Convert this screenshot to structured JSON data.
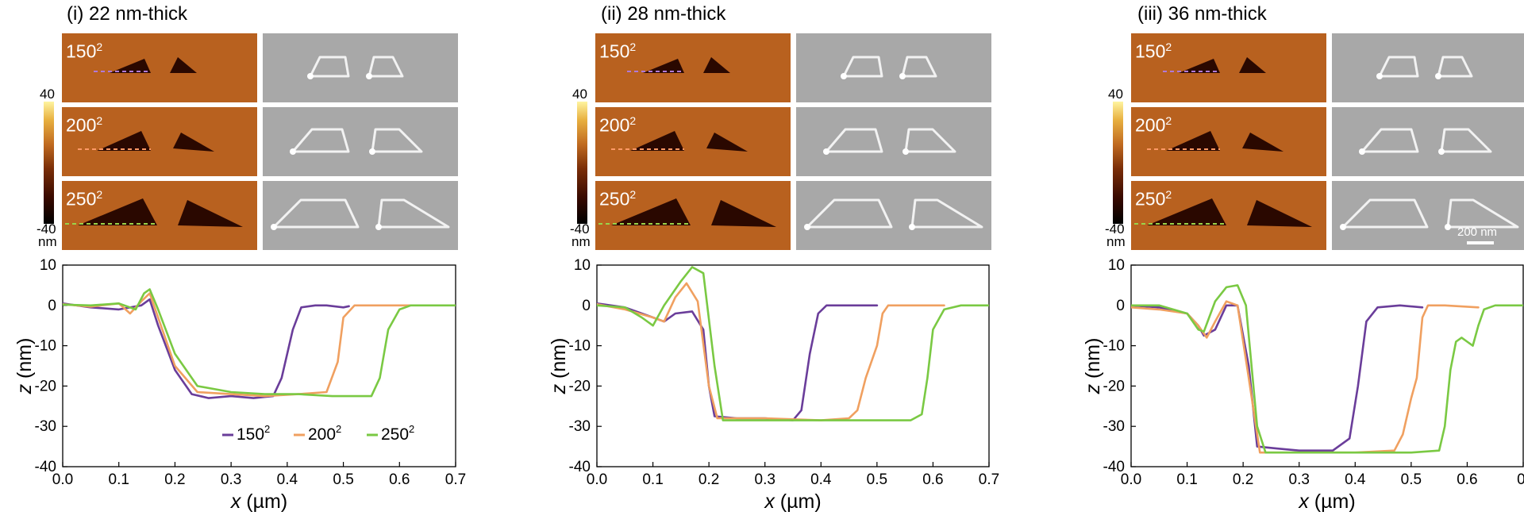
{
  "panels": [
    {
      "title": "(i) 22 nm-thick",
      "chart_data": {
        "type": "line",
        "xlabel_var": "x",
        "xlabel_unit": " (µm)",
        "ylabel_var": "z",
        "ylabel_unit": " (nm)",
        "xlim": [
          0,
          0.7
        ],
        "ylim": [
          -40,
          10
        ],
        "xticks": [
          "0.0",
          "0.1",
          "0.2",
          "0.3",
          "0.4",
          "0.5",
          "0.6",
          "0.7"
        ],
        "yticks": [
          "10",
          "0",
          "-10",
          "-20",
          "-30",
          "-40"
        ],
        "legend": [
          {
            "base": "150",
            "sup": "2"
          },
          {
            "base": "200",
            "sup": "2"
          },
          {
            "base": "250",
            "sup": "2"
          }
        ],
        "series": [
          {
            "color": "#6a3d9a",
            "points": [
              [
                0,
                0.5
              ],
              [
                0.05,
                -0.5
              ],
              [
                0.1,
                -1
              ],
              [
                0.14,
                0
              ],
              [
                0.155,
                1.5
              ],
              [
                0.17,
                -5
              ],
              [
                0.2,
                -16
              ],
              [
                0.23,
                -22
              ],
              [
                0.26,
                -23
              ],
              [
                0.3,
                -22.5
              ],
              [
                0.34,
                -23
              ],
              [
                0.375,
                -22.5
              ],
              [
                0.39,
                -18
              ],
              [
                0.41,
                -6
              ],
              [
                0.425,
                -0.5
              ],
              [
                0.45,
                0
              ],
              [
                0.47,
                0
              ],
              [
                0.5,
                -0.5
              ],
              [
                0.51,
                -0.2
              ]
            ]
          },
          {
            "color": "#f0a060",
            "points": [
              [
                0,
                0.3
              ],
              [
                0.05,
                -0.3
              ],
              [
                0.1,
                0.5
              ],
              [
                0.12,
                -2
              ],
              [
                0.14,
                1
              ],
              [
                0.155,
                3
              ],
              [
                0.17,
                -3
              ],
              [
                0.2,
                -15
              ],
              [
                0.24,
                -21.5
              ],
              [
                0.3,
                -22
              ],
              [
                0.36,
                -22.5
              ],
              [
                0.42,
                -22
              ],
              [
                0.47,
                -21.5
              ],
              [
                0.49,
                -14
              ],
              [
                0.5,
                -3
              ],
              [
                0.52,
                0
              ],
              [
                0.55,
                0
              ],
              [
                0.58,
                0
              ],
              [
                0.62,
                0
              ]
            ]
          },
          {
            "color": "#7ac943",
            "points": [
              [
                0,
                0.2
              ],
              [
                0.05,
                0
              ],
              [
                0.1,
                0.5
              ],
              [
                0.13,
                -1
              ],
              [
                0.145,
                3
              ],
              [
                0.155,
                4
              ],
              [
                0.17,
                -1
              ],
              [
                0.2,
                -12
              ],
              [
                0.24,
                -20
              ],
              [
                0.3,
                -21.5
              ],
              [
                0.36,
                -22
              ],
              [
                0.42,
                -22
              ],
              [
                0.48,
                -22.5
              ],
              [
                0.55,
                -22.5
              ],
              [
                0.565,
                -18
              ],
              [
                0.58,
                -6
              ],
              [
                0.6,
                -1
              ],
              [
                0.62,
                0
              ],
              [
                0.65,
                0
              ],
              [
                0.7,
                0
              ]
            ]
          }
        ]
      }
    },
    {
      "title": "(ii) 28 nm-thick",
      "chart_data": {
        "type": "line",
        "xlabel_var": "x",
        "xlabel_unit": " (µm)",
        "ylabel_var": "z",
        "ylabel_unit": " (nm)",
        "xlim": [
          0,
          0.7
        ],
        "ylim": [
          -40,
          10
        ],
        "xticks": [
          "0.0",
          "0.1",
          "0.2",
          "0.3",
          "0.4",
          "0.5",
          "0.6",
          "0.7"
        ],
        "yticks": [
          "10",
          "0",
          "-10",
          "-20",
          "-30",
          "-40"
        ],
        "series": [
          {
            "color": "#6a3d9a",
            "points": [
              [
                0,
                0.5
              ],
              [
                0.05,
                -0.5
              ],
              [
                0.1,
                -3
              ],
              [
                0.12,
                -4
              ],
              [
                0.14,
                -2
              ],
              [
                0.17,
                -1.5
              ],
              [
                0.19,
                -6
              ],
              [
                0.2,
                -20
              ],
              [
                0.21,
                -27.5
              ],
              [
                0.25,
                -28
              ],
              [
                0.3,
                -28
              ],
              [
                0.35,
                -28.5
              ],
              [
                0.365,
                -26
              ],
              [
                0.38,
                -12
              ],
              [
                0.395,
                -2
              ],
              [
                0.41,
                0
              ],
              [
                0.45,
                0
              ],
              [
                0.5,
                0
              ]
            ]
          },
          {
            "color": "#f0a060",
            "points": [
              [
                0,
                0.3
              ],
              [
                0.05,
                -1
              ],
              [
                0.1,
                -3
              ],
              [
                0.12,
                -4
              ],
              [
                0.14,
                2
              ],
              [
                0.16,
                5.5
              ],
              [
                0.18,
                1
              ],
              [
                0.2,
                -20
              ],
              [
                0.215,
                -28
              ],
              [
                0.3,
                -28
              ],
              [
                0.4,
                -28.5
              ],
              [
                0.45,
                -28
              ],
              [
                0.465,
                -26
              ],
              [
                0.48,
                -18
              ],
              [
                0.5,
                -10
              ],
              [
                0.51,
                -2
              ],
              [
                0.52,
                0
              ],
              [
                0.55,
                0
              ],
              [
                0.62,
                0
              ]
            ]
          },
          {
            "color": "#7ac943",
            "points": [
              [
                0,
                0
              ],
              [
                0.05,
                -0.5
              ],
              [
                0.08,
                -3
              ],
              [
                0.1,
                -5
              ],
              [
                0.12,
                0
              ],
              [
                0.15,
                6
              ],
              [
                0.17,
                9.5
              ],
              [
                0.19,
                8
              ],
              [
                0.21,
                -15
              ],
              [
                0.225,
                -28.5
              ],
              [
                0.3,
                -28.5
              ],
              [
                0.4,
                -28.5
              ],
              [
                0.5,
                -28.5
              ],
              [
                0.56,
                -28.5
              ],
              [
                0.58,
                -27
              ],
              [
                0.59,
                -18
              ],
              [
                0.6,
                -6
              ],
              [
                0.62,
                -1
              ],
              [
                0.65,
                0
              ],
              [
                0.7,
                0
              ]
            ]
          }
        ]
      }
    },
    {
      "title": "(iii) 36 nm-thick",
      "chart_data": {
        "type": "line",
        "xlabel_var": "x",
        "xlabel_unit": " (µm)",
        "ylabel_var": "z",
        "ylabel_unit": " (nm)",
        "xlim": [
          0,
          0.7
        ],
        "ylim": [
          -40,
          10
        ],
        "xticks": [
          "0.0",
          "0.1",
          "0.2",
          "0.3",
          "0.4",
          "0.5",
          "0.6",
          "0."
        ],
        "yticks": [
          "10",
          "0",
          "-10",
          "-20",
          "-30",
          "-40"
        ],
        "series": [
          {
            "color": "#6a3d9a",
            "points": [
              [
                0,
                0
              ],
              [
                0.05,
                -0.5
              ],
              [
                0.1,
                -2
              ],
              [
                0.12,
                -5
              ],
              [
                0.13,
                -7.5
              ],
              [
                0.15,
                -6
              ],
              [
                0.17,
                0
              ],
              [
                0.19,
                0
              ],
              [
                0.21,
                -15
              ],
              [
                0.225,
                -35
              ],
              [
                0.26,
                -35.5
              ],
              [
                0.3,
                -36
              ],
              [
                0.36,
                -36
              ],
              [
                0.39,
                -33
              ],
              [
                0.405,
                -20
              ],
              [
                0.42,
                -4
              ],
              [
                0.44,
                -0.5
              ],
              [
                0.48,
                0
              ],
              [
                0.52,
                -0.5
              ]
            ]
          },
          {
            "color": "#f0a060",
            "points": [
              [
                0,
                -0.5
              ],
              [
                0.05,
                -1
              ],
              [
                0.1,
                -2
              ],
              [
                0.12,
                -5
              ],
              [
                0.135,
                -8
              ],
              [
                0.15,
                -4
              ],
              [
                0.17,
                1
              ],
              [
                0.19,
                0
              ],
              [
                0.21,
                -18
              ],
              [
                0.23,
                -36.5
              ],
              [
                0.3,
                -36.5
              ],
              [
                0.4,
                -36.5
              ],
              [
                0.47,
                -36
              ],
              [
                0.485,
                -32
              ],
              [
                0.5,
                -23
              ],
              [
                0.51,
                -18
              ],
              [
                0.52,
                -3
              ],
              [
                0.53,
                0
              ],
              [
                0.56,
                0
              ],
              [
                0.62,
                -0.5
              ]
            ]
          },
          {
            "color": "#7ac943",
            "points": [
              [
                0,
                0
              ],
              [
                0.05,
                0
              ],
              [
                0.1,
                -2
              ],
              [
                0.12,
                -6
              ],
              [
                0.13,
                -6.5
              ],
              [
                0.15,
                1
              ],
              [
                0.17,
                4.5
              ],
              [
                0.19,
                5
              ],
              [
                0.205,
                0
              ],
              [
                0.225,
                -30
              ],
              [
                0.24,
                -36.5
              ],
              [
                0.3,
                -36.5
              ],
              [
                0.4,
                -36.5
              ],
              [
                0.5,
                -36.5
              ],
              [
                0.55,
                -36
              ],
              [
                0.56,
                -30
              ],
              [
                0.57,
                -16
              ],
              [
                0.58,
                -9
              ],
              [
                0.59,
                -8
              ],
              [
                0.6,
                -9
              ],
              [
                0.61,
                -10
              ],
              [
                0.62,
                -5
              ],
              [
                0.63,
                -1
              ],
              [
                0.65,
                0
              ],
              [
                0.7,
                0
              ]
            ]
          }
        ]
      }
    }
  ],
  "colorbar": {
    "top_label": "40",
    "bottom_label": "-40",
    "unit": "nm"
  },
  "tile_labels": [
    {
      "base": "150",
      "sup": "2"
    },
    {
      "base": "200",
      "sup": "2"
    },
    {
      "base": "250",
      "sup": "2"
    }
  ],
  "scalebar_label": "200 nm",
  "colors": {
    "afm_background": "#b8611f",
    "sem_background": "#a8a8a8",
    "triangle_dark": "#2a0800"
  }
}
